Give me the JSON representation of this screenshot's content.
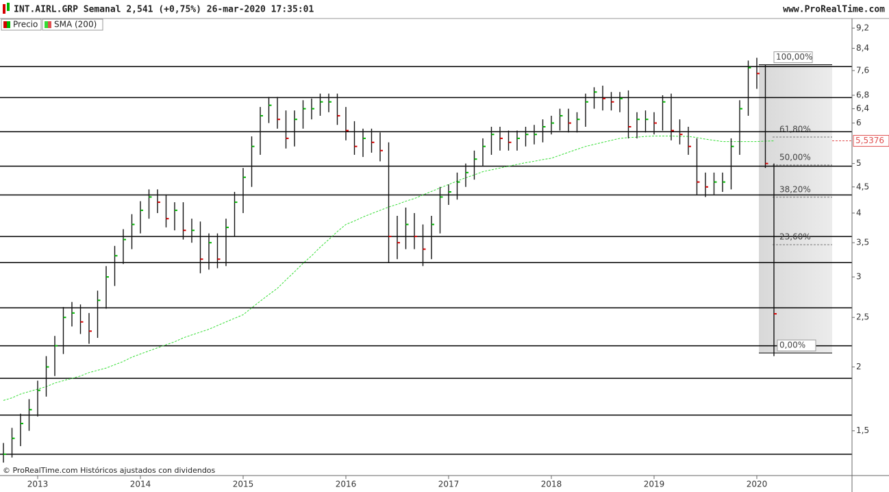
{
  "chart_data": {
    "type": "hlc",
    "title": "INT.AIRL.GRP Semanal 2,541 (+0,75%) 26-mar-2020 17:35:01",
    "source": "www.ProRealTime.com",
    "footnote": "© ProRealTime.com Históricos ajustados con dividendos",
    "log_scale": true,
    "ylim": [
      1.23,
      9.52
    ],
    "yticks": [
      {
        "value": 9.2,
        "label": "9,2"
      },
      {
        "value": 8.4,
        "label": "8,4"
      },
      {
        "value": 7.6,
        "label": "7,6"
      },
      {
        "value": 6.8,
        "label": "6,8"
      },
      {
        "value": 6.4,
        "label": "6,4"
      },
      6,
      5,
      {
        "value": 4.5,
        "label": "4,5"
      },
      4,
      {
        "value": 3.5,
        "label": "3,5"
      },
      3,
      {
        "value": 2.5,
        "label": "2,5"
      },
      2,
      {
        "value": 1.5,
        "label": "1,5"
      }
    ],
    "categories": [
      null,
      null,
      null,
      null,
      "2013",
      null,
      null,
      null,
      null,
      null,
      null,
      null,
      null,
      null,
      null,
      null,
      "2014",
      null,
      null,
      null,
      null,
      null,
      null,
      null,
      null,
      null,
      null,
      null,
      "2015",
      null,
      null,
      null,
      null,
      null,
      null,
      null,
      null,
      null,
      null,
      null,
      "2016",
      null,
      null,
      null,
      null,
      null,
      null,
      null,
      null,
      null,
      null,
      null,
      "2017",
      null,
      null,
      null,
      null,
      null,
      null,
      null,
      null,
      null,
      null,
      null,
      "2018",
      null,
      null,
      null,
      null,
      null,
      null,
      null,
      null,
      null,
      null,
      null,
      "2019",
      null,
      null,
      null,
      null,
      null,
      null,
      null,
      null,
      null,
      null,
      null,
      "2020",
      null,
      null
    ],
    "series": [
      {
        "name": "Precio",
        "up_color": "#00b400",
        "down_color": "#d40000",
        "high": [
          1.42,
          1.52,
          1.62,
          1.73,
          1.88,
          2.1,
          2.3,
          2.62,
          2.68,
          2.65,
          2.55,
          2.82,
          3.15,
          3.45,
          3.72,
          3.98,
          4.22,
          4.45,
          4.45,
          4.35,
          4.2,
          4.2,
          3.9,
          3.85,
          3.65,
          3.65,
          3.9,
          4.4,
          4.9,
          5.65,
          6.45,
          6.75,
          6.75,
          6.35,
          6.35,
          6.65,
          6.7,
          6.85,
          6.85,
          6.85,
          6.45,
          6.05,
          5.85,
          5.85,
          5.75,
          5.5,
          3.95,
          4.1,
          4.0,
          3.8,
          3.95,
          4.5,
          4.55,
          4.8,
          5.0,
          5.3,
          5.6,
          5.9,
          5.9,
          5.8,
          5.8,
          5.9,
          5.95,
          6.1,
          6.2,
          6.4,
          6.4,
          6.3,
          6.85,
          7.05,
          7.1,
          6.9,
          6.9,
          6.95,
          6.3,
          6.35,
          6.3,
          6.8,
          6.85,
          6.1,
          5.9,
          5.6,
          4.8,
          4.8,
          4.8,
          5.6,
          6.65,
          7.95,
          8.05,
          7.8,
          5.0
        ],
        "low": [
          1.3,
          1.33,
          1.4,
          1.5,
          1.6,
          1.75,
          1.92,
          2.12,
          2.4,
          2.32,
          2.22,
          2.28,
          2.6,
          2.88,
          3.18,
          3.4,
          3.65,
          3.9,
          4.0,
          3.75,
          3.7,
          3.55,
          3.5,
          3.05,
          3.1,
          3.12,
          3.15,
          3.6,
          4.0,
          4.5,
          5.2,
          6.0,
          5.85,
          5.35,
          5.4,
          5.85,
          6.1,
          6.2,
          6.3,
          5.95,
          5.55,
          5.2,
          5.15,
          5.25,
          5.05,
          3.2,
          3.25,
          3.4,
          3.4,
          3.15,
          3.25,
          3.65,
          4.15,
          4.25,
          4.5,
          4.65,
          4.95,
          5.2,
          5.3,
          5.3,
          5.3,
          5.4,
          5.45,
          5.5,
          5.7,
          5.8,
          5.75,
          5.75,
          5.9,
          6.4,
          6.35,
          6.35,
          6.3,
          5.6,
          5.6,
          5.75,
          5.7,
          5.8,
          5.55,
          5.45,
          5.2,
          4.35,
          4.3,
          4.35,
          4.4,
          4.45,
          5.2,
          6.2,
          7.0,
          4.9,
          2.1
        ],
        "values": [
          1.35,
          1.45,
          1.55,
          1.65,
          1.8,
          2.0,
          2.2,
          2.5,
          2.55,
          2.45,
          2.35,
          2.7,
          3.0,
          3.3,
          3.55,
          3.8,
          4.05,
          4.3,
          4.2,
          3.9,
          4.05,
          3.7,
          3.7,
          3.25,
          3.5,
          3.25,
          3.75,
          4.2,
          4.7,
          5.4,
          6.2,
          6.5,
          6.1,
          5.6,
          6.1,
          6.4,
          6.4,
          6.6,
          6.6,
          6.2,
          5.8,
          5.4,
          5.6,
          5.5,
          5.3,
          3.6,
          3.5,
          3.8,
          3.6,
          3.4,
          3.8,
          4.3,
          4.4,
          4.6,
          4.8,
          5.1,
          5.4,
          5.7,
          5.6,
          5.5,
          5.6,
          5.7,
          5.7,
          5.9,
          6.0,
          6.2,
          6.0,
          6.1,
          6.6,
          6.9,
          6.7,
          6.6,
          6.7,
          5.9,
          6.1,
          6.1,
          6.0,
          6.6,
          5.8,
          5.7,
          5.4,
          4.6,
          4.5,
          4.6,
          4.6,
          5.4,
          6.4,
          7.7,
          7.5,
          5.0,
          2.541
        ]
      },
      {
        "name": "SMA (200)",
        "color": "#33dd33",
        "values": [
          1.72,
          1.74,
          1.77,
          1.79,
          1.81,
          1.83,
          1.86,
          1.88,
          1.9,
          1.92,
          1.95,
          1.97,
          1.99,
          2.02,
          2.05,
          2.09,
          2.12,
          2.15,
          2.18,
          2.21,
          2.24,
          2.28,
          2.31,
          2.34,
          2.37,
          2.41,
          2.45,
          2.49,
          2.53,
          2.61,
          2.69,
          2.77,
          2.85,
          2.96,
          3.07,
          3.19,
          3.3,
          3.43,
          3.55,
          3.68,
          3.8,
          3.86,
          3.93,
          3.99,
          4.05,
          4.11,
          4.16,
          4.22,
          4.27,
          4.34,
          4.41,
          4.48,
          4.55,
          4.62,
          4.69,
          4.75,
          4.82,
          4.86,
          4.9,
          4.94,
          4.98,
          5.02,
          5.05,
          5.09,
          5.12,
          5.19,
          5.26,
          5.33,
          5.4,
          5.45,
          5.5,
          5.55,
          5.6,
          5.62,
          5.63,
          5.65,
          5.66,
          5.66,
          5.66,
          5.65,
          5.65,
          5.62,
          5.58,
          5.55,
          5.52,
          5.52,
          5.52,
          5.52,
          5.52,
          5.53,
          5.5376
        ]
      }
    ],
    "sma_last": {
      "value": 5.5376,
      "label": "5,5376",
      "color": "#e05050"
    },
    "hlines": [
      7.74,
      6.73,
      5.77,
      4.94,
      4.34,
      3.6,
      3.2,
      2.61,
      2.2,
      1.9,
      1.61,
      1.35
    ],
    "fibonacci": {
      "high": 7.8,
      "low": 2.13,
      "levels": [
        {
          "value": 100,
          "label": "100,00%"
        },
        {
          "value": 61.8,
          "label": "61,80%"
        },
        {
          "value": 50,
          "label": "50,00%"
        },
        {
          "value": 38.2,
          "label": "38,20%"
        },
        {
          "value": 23.6,
          "label": "23,60%"
        },
        {
          "value": 0,
          "label": "0,00%"
        }
      ]
    }
  }
}
